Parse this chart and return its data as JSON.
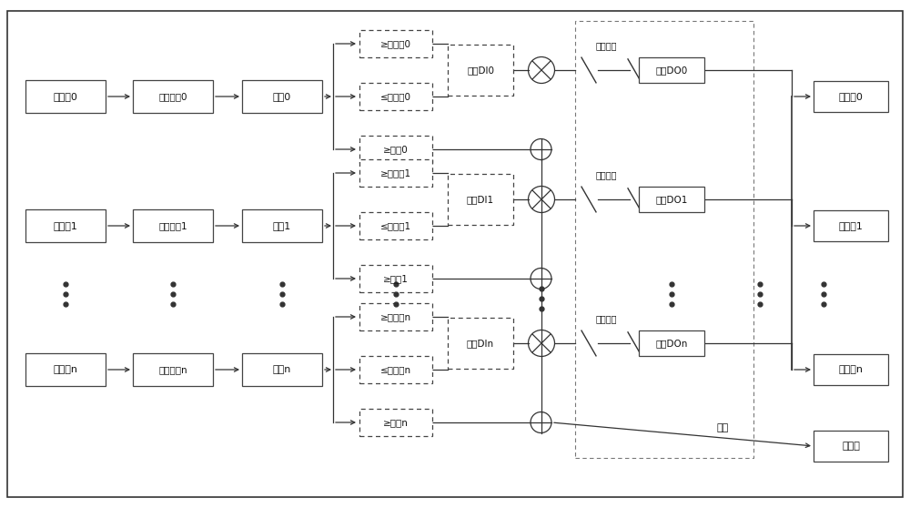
{
  "bg_color": "#ffffff",
  "box_edge": "#444444",
  "text_color": "#111111",
  "rows": [
    {
      "sensor": "传感器0",
      "analog": "模拟采样0",
      "temp": "温度0",
      "upper": "≥上限共0",
      "lower": "≤下限共0",
      "alarm_box": "≥报警0",
      "di": "使胎DI0",
      "do_box": "使胎DO0",
      "heater": "加热刨0",
      "emergency": "紧急停止"
    },
    {
      "sensor": "传感器1",
      "analog": "模拟采样1",
      "temp": "温度1",
      "upper": "≥上限共1",
      "lower": "≤下限共1",
      "alarm_box": "≥报警1",
      "di": "使胎DI1",
      "do_box": "使胎DO1",
      "heater": "加热刨1",
      "emergency": "紧急停止"
    },
    {
      "sensor": "传感器n",
      "analog": "模拟采样n",
      "temp": "温度n",
      "upper": "≥上限射n",
      "lower": "≤下限射n",
      "alarm_box": "≥报警n",
      "di": "使胎DIn",
      "do_box": "使胎DOn",
      "heater": "加热器n",
      "emergency": "紧急停止"
    }
  ],
  "reporter": "报警器",
  "alarm_label": "报警"
}
